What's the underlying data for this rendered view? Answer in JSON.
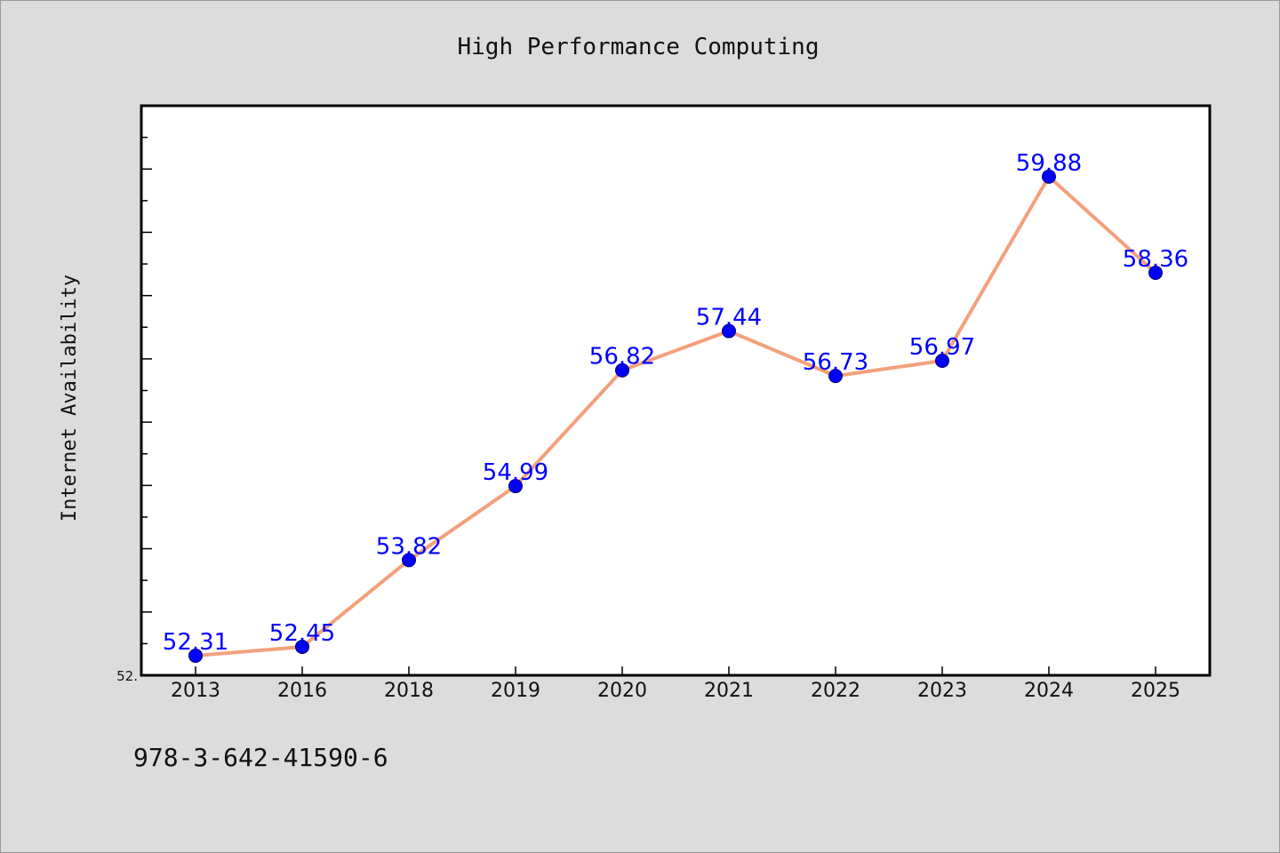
{
  "chart_data": {
    "type": "line",
    "title": "High Performance Computing",
    "xlabel": "",
    "ylabel": "Internet Availability",
    "categories": [
      "2013",
      "2016",
      "2018",
      "2019",
      "2020",
      "2021",
      "2022",
      "2023",
      "2024",
      "2025"
    ],
    "series": [
      {
        "values": [
          52.31,
          52.45,
          53.82,
          54.99,
          56.82,
          57.44,
          56.73,
          56.97,
          59.88,
          58.36
        ],
        "line_color": "#f4a07c",
        "marker_color": "#0000ff"
      }
    ],
    "data_labels": [
      "52.31",
      "52.45",
      "53.82",
      "54.99",
      "56.82",
      "57.44",
      "56.73",
      "56.97",
      "59.88",
      "58.36"
    ],
    "ylim": [
      52.0,
      61.0
    ],
    "y_tick_label_min": "52.",
    "grid": false,
    "legend": "none"
  },
  "footer": {
    "text": "978-3-642-41590-6"
  },
  "colors": {
    "background": "#dcdcdc",
    "plot_background": "#ffffff",
    "line": "#f4a07c",
    "marker": "#0000ff",
    "label": "#0000ff"
  }
}
